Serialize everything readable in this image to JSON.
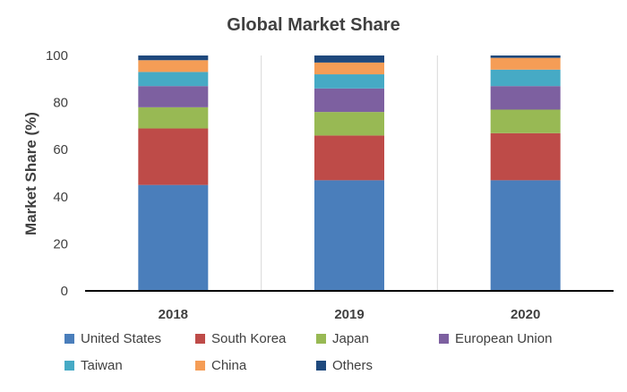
{
  "chart_data": {
    "type": "bar",
    "stacked": true,
    "title": "Global Market Share",
    "xlabel": "",
    "ylabel": "Market Share (%)",
    "ylim": [
      0,
      100
    ],
    "yticks": [
      0,
      20,
      40,
      60,
      80,
      100
    ],
    "categories": [
      "2018",
      "2019",
      "2020"
    ],
    "grid": "vertical separators",
    "legend_position": "bottom",
    "series": [
      {
        "name": "United States",
        "color": "#4a7ebb",
        "values": [
          45,
          47,
          47
        ]
      },
      {
        "name": "South Korea",
        "color": "#be4b48",
        "values": [
          24,
          19,
          20
        ]
      },
      {
        "name": "Japan",
        "color": "#98b954",
        "values": [
          9,
          10,
          10
        ]
      },
      {
        "name": "European Union",
        "color": "#7d60a0",
        "values": [
          9,
          10,
          10
        ]
      },
      {
        "name": "Taiwan",
        "color": "#46aac5",
        "values": [
          6,
          6,
          7
        ]
      },
      {
        "name": "China",
        "color": "#f59d56",
        "values": [
          5,
          5,
          5
        ]
      },
      {
        "name": "Others",
        "color": "#1f497d",
        "values": [
          2,
          3,
          1
        ]
      }
    ]
  }
}
